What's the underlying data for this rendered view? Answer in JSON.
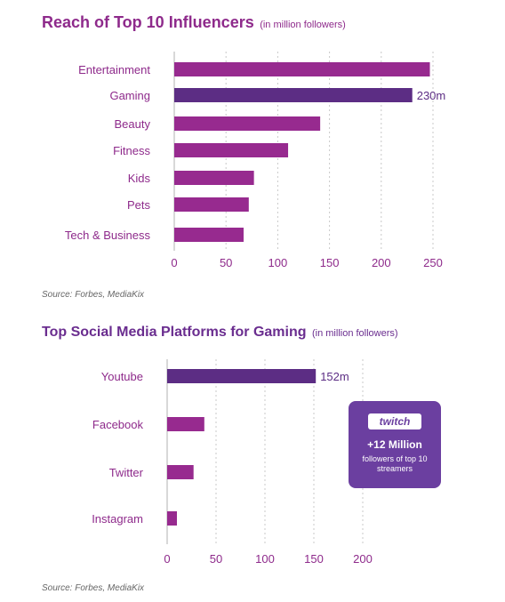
{
  "charts": [
    {
      "title": "Reach of Top 10 Influencers",
      "subtitle": "(in million followers)",
      "source": "Source: Forbes, MediaKix"
    },
    {
      "title": "Top Social Media Platforms for Gaming",
      "subtitle": "(in million followers)",
      "source": "Source: Forbes, MediaKix"
    }
  ],
  "callout": {
    "brand": "twitch",
    "headline": "+12 Million",
    "text": "followers of top 10 streamers"
  },
  "colors": {
    "bar": "#972a8f",
    "bar_highlight": "#5c2d84",
    "label": "#8e2a8b"
  },
  "chart_data": [
    {
      "type": "bar",
      "orientation": "horizontal",
      "categories": [
        "Entertainment",
        "Gaming",
        "Beauty",
        "Fitness",
        "Kids",
        "Pets",
        "Tech & Business"
      ],
      "values": [
        247,
        230,
        141,
        110,
        77,
        72,
        67
      ],
      "highlight_index": 1,
      "data_labels": {
        "1": "230m"
      },
      "xticks": [
        0,
        50,
        100,
        150,
        200,
        250
      ],
      "xlim": [
        0,
        250
      ],
      "grid": true
    },
    {
      "type": "bar",
      "orientation": "horizontal",
      "categories": [
        "Youtube",
        "Facebook",
        "Twitter",
        "Instagram"
      ],
      "values": [
        152,
        38,
        27,
        10
      ],
      "highlight_index": 0,
      "data_labels": {
        "0": "152m"
      },
      "xticks": [
        0,
        50,
        100,
        150,
        200
      ],
      "xlim": [
        0,
        200
      ],
      "grid": true
    }
  ]
}
